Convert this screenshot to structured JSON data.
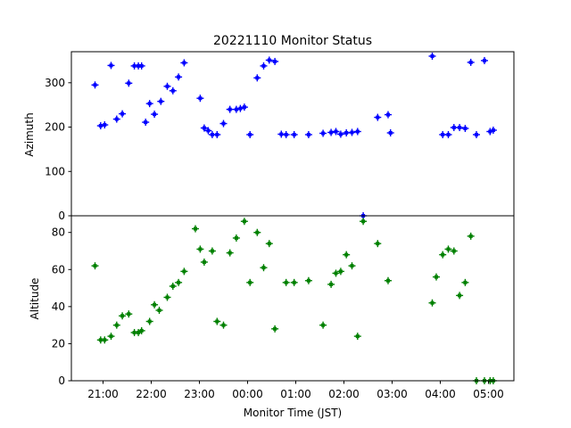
{
  "title": "20221110 Monitor Status",
  "xlabel": "Monitor Time (JST)",
  "colors": {
    "azimuth": "#0000ff",
    "altitude": "#008000",
    "axes": "#000000"
  },
  "chart_data": [
    {
      "type": "scatter",
      "marker": "plus-with-error-bars",
      "ylabel": "Azimuth",
      "ylim": [
        0,
        370
      ],
      "yticks": [
        "0",
        "100",
        "200",
        "300"
      ],
      "xticks": [
        "21:00",
        "22:00",
        "23:00",
        "00:00",
        "01:00",
        "02:00",
        "03:00",
        "04:00",
        "05:00"
      ],
      "series": [
        {
          "color": "#0000ff",
          "x": [
            "20:50",
            "20:57",
            "21:02",
            "21:10",
            "21:17",
            "21:24",
            "21:32",
            "21:39",
            "21:44",
            "21:48",
            "21:53",
            "21:58",
            "22:04",
            "22:12",
            "22:20",
            "22:27",
            "22:34",
            "22:41",
            "23:56",
            "23:01",
            "23:06",
            "23:11",
            "23:16",
            "23:22",
            "23:30",
            "23:38",
            "23:46",
            "23:51",
            "00:03",
            "00:12",
            "00:20",
            "00:27",
            "00:34",
            "00:42",
            "00:48",
            "00:58",
            "01:16",
            "01:34",
            "01:44",
            "01:50",
            "01:56",
            "02:03",
            "02:10",
            "02:17",
            "02:24",
            "02:42",
            "02:55",
            "02:58",
            "03:50",
            "04:03",
            "04:10",
            "04:17",
            "04:24",
            "04:31",
            "04:38",
            "04:45",
            "04:55",
            "05:02",
            "05:06"
          ],
          "y": [
            295,
            203,
            205,
            339,
            218,
            230,
            299,
            338,
            338,
            338,
            211,
            253,
            229,
            258,
            292,
            282,
            313,
            345,
            245,
            265,
            198,
            192,
            183,
            183,
            208,
            240,
            240,
            242,
            183,
            311,
            338,
            351,
            348,
            184,
            183,
            183,
            183,
            186,
            188,
            190,
            184,
            187,
            188,
            190,
            0,
            222,
            228,
            187,
            360,
            183,
            183,
            199,
            199,
            197,
            346,
            183,
            350,
            190,
            193
          ]
        }
      ]
    },
    {
      "type": "scatter",
      "marker": "plus-with-error-bars",
      "ylabel": "Altitude",
      "ylim": [
        0,
        89
      ],
      "yticks": [
        "0",
        "20",
        "40",
        "60",
        "80"
      ],
      "xticks": [
        "21:00",
        "22:00",
        "23:00",
        "00:00",
        "01:00",
        "02:00",
        "03:00",
        "04:00",
        "05:00"
      ],
      "series": [
        {
          "color": "#008000",
          "x": [
            "20:50",
            "20:57",
            "21:02",
            "21:10",
            "21:17",
            "21:24",
            "21:32",
            "21:39",
            "21:44",
            "21:48",
            "21:58",
            "22:04",
            "22:10",
            "22:20",
            "22:27",
            "22:34",
            "22:41",
            "22:55",
            "23:01",
            "23:06",
            "23:16",
            "23:22",
            "23:30",
            "23:38",
            "23:46",
            "23:56",
            "00:03",
            "00:12",
            "00:20",
            "00:27",
            "00:34",
            "00:48",
            "00:58",
            "01:16",
            "01:34",
            "01:44",
            "01:50",
            "01:56",
            "02:03",
            "02:10",
            "02:17",
            "02:24",
            "02:42",
            "02:55",
            "03:50",
            "03:55",
            "04:03",
            "04:10",
            "04:17",
            "04:24",
            "04:31",
            "04:38",
            "04:45",
            "04:55",
            "05:02",
            "05:06"
          ],
          "y": [
            62,
            22,
            22,
            24,
            30,
            35,
            36,
            26,
            26,
            27,
            32,
            41,
            38,
            45,
            51,
            53,
            59,
            82,
            71,
            64,
            70,
            32,
            30,
            69,
            77,
            86,
            53,
            80,
            61,
            74,
            28,
            53,
            53,
            54,
            30,
            52,
            58,
            59,
            68,
            62,
            24,
            86,
            74,
            54,
            42,
            56,
            68,
            71,
            70,
            46,
            53,
            78,
            0,
            0,
            0,
            0
          ]
        }
      ]
    }
  ]
}
